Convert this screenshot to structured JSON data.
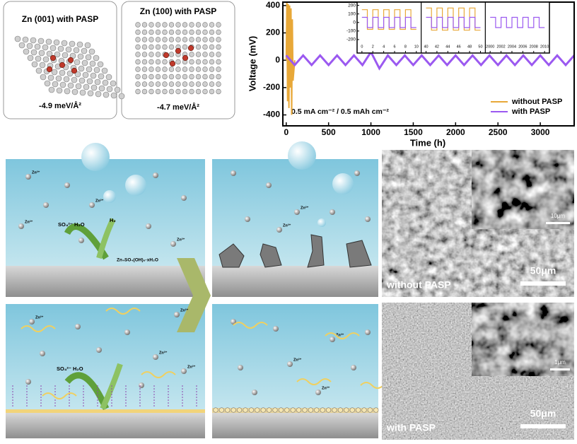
{
  "chart_data": [
    {
      "type": "line",
      "y_label": "Voltage (mV)",
      "x_label": "Time (h)",
      "annotation": "0.5 mA cm⁻² / 0.5 mAh cm⁻²",
      "xlim": [
        -40,
        3400
      ],
      "xticks": [
        0,
        500,
        1000,
        1500,
        2000,
        2500,
        3000
      ],
      "ylim": [
        -480,
        425
      ],
      "yticks": [
        400,
        200,
        0,
        -200,
        -400
      ],
      "legend": "lower-right",
      "series": [
        {
          "name": "without PASP",
          "color": "#e8a838",
          "x": [
            0,
            8,
            16,
            24,
            32,
            40,
            48,
            56,
            64,
            72,
            80,
            100
          ],
          "values": [
            0,
            420,
            -300,
            410,
            -350,
            400,
            -200,
            380,
            -400,
            300,
            -150,
            0
          ]
        },
        {
          "name": "with PASP",
          "color": "#9b59f0",
          "x": [
            0,
            100,
            200,
            300,
            400,
            500,
            600,
            700,
            800,
            900,
            1000,
            1100,
            1200,
            1300,
            1400,
            1500,
            1600,
            1700,
            1800,
            1900,
            2000,
            2100,
            2200,
            2300,
            2400,
            2500,
            2600,
            2700,
            2800,
            2900,
            3000,
            3100,
            3200,
            3300,
            3400
          ],
          "values": [
            35,
            -35,
            35,
            -35,
            35,
            -35,
            35,
            -35,
            35,
            -35,
            60,
            -60,
            35,
            -35,
            35,
            -35,
            35,
            -35,
            35,
            -35,
            35,
            -35,
            35,
            -35,
            35,
            -35,
            35,
            -35,
            35,
            -35,
            35,
            -35,
            35,
            -35,
            35
          ]
        }
      ]
    },
    {
      "type": "inset",
      "ylim": [
        -250,
        230
      ],
      "yticks": [
        200,
        100,
        0,
        -100,
        -200
      ],
      "panels": [
        {
          "xlim": [
            -0.5,
            10.5
          ],
          "xticks": [
            0,
            2,
            4,
            6,
            8,
            10
          ],
          "series": [
            {
              "color": "#e8a838",
              "x": [
                0,
                1,
                1,
                2,
                2,
                3,
                3,
                4,
                4,
                5,
                5,
                6,
                6,
                7,
                7,
                8,
                8,
                9,
                9,
                10
              ],
              "values": [
                150,
                150,
                -80,
                -80,
                150,
                150,
                -80,
                -80,
                150,
                150,
                -80,
                -80,
                150,
                150,
                -80,
                -80,
                150,
                150,
                -80,
                -80
              ]
            },
            {
              "color": "#9b59f0",
              "x": [
                0,
                1,
                1,
                2,
                2,
                3,
                3,
                4,
                4,
                5,
                5,
                6,
                6,
                7,
                7,
                8,
                8,
                9,
                9,
                10
              ],
              "values": [
                60,
                60,
                -60,
                -60,
                60,
                60,
                -60,
                -60,
                60,
                60,
                -60,
                -60,
                60,
                60,
                -60,
                -60,
                60,
                60,
                -60,
                -60
              ]
            }
          ]
        },
        {
          "xlim": [
            39.5,
            50.5
          ],
          "xticks": [
            40,
            42,
            44,
            46,
            48,
            50
          ],
          "series": [
            {
              "color": "#e8a838",
              "x": [
                40,
                41,
                41,
                42,
                42,
                43,
                43,
                44,
                44,
                45,
                45,
                46,
                46,
                47,
                47,
                48,
                48,
                49,
                49,
                50
              ],
              "values": [
                170,
                170,
                -90,
                -90,
                170,
                170,
                -90,
                -90,
                170,
                170,
                -90,
                -90,
                170,
                170,
                -90,
                -90,
                170,
                170,
                -90,
                -90
              ]
            },
            {
              "color": "#9b59f0",
              "x": [
                40,
                41,
                41,
                42,
                42,
                43,
                43,
                44,
                44,
                45,
                45,
                46,
                46,
                47,
                47,
                48,
                48,
                49,
                49,
                50
              ],
              "values": [
                60,
                60,
                -60,
                -60,
                60,
                60,
                -60,
                -60,
                60,
                60,
                -60,
                -60,
                60,
                60,
                -60,
                -60,
                60,
                60,
                -60,
                -60
              ]
            }
          ]
        },
        {
          "xlim": [
            1999.5,
            2010.5
          ],
          "xticks": [
            2000,
            2002,
            2004,
            2006,
            2008,
            2010
          ],
          "series": [
            {
              "color": "#9b59f0",
              "x": [
                2000,
                2001,
                2001,
                2002,
                2002,
                2003,
                2003,
                2004,
                2004,
                2005,
                2005,
                2006,
                2006,
                2007,
                2007,
                2008,
                2008,
                2009,
                2009,
                2010
              ],
              "values": [
                60,
                60,
                -60,
                -60,
                60,
                60,
                -60,
                -60,
                60,
                60,
                -60,
                -60,
                60,
                60,
                -60,
                -60,
                60,
                60,
                -60,
                -60
              ]
            }
          ]
        }
      ]
    }
  ],
  "structures": [
    {
      "title": "Zn (001) with PASP",
      "energy": "-4.9 meV/Å²"
    },
    {
      "title": "Zn (100) with PASP",
      "energy": "-4.7 meV/Å²"
    }
  ],
  "diagram": {
    "ion": "Zn²⁺",
    "anion_water": "SO₄²⁻ H₂O",
    "hydrogen": "H₂",
    "byproduct": "Zn₄SO₄(OH)₆·xH₂O"
  },
  "sem": [
    {
      "label": "without PASP",
      "scale": "50μm",
      "inset_scale": "10μm"
    },
    {
      "label": "with PASP",
      "scale": "50μm",
      "inset_scale": "1μm"
    }
  ]
}
